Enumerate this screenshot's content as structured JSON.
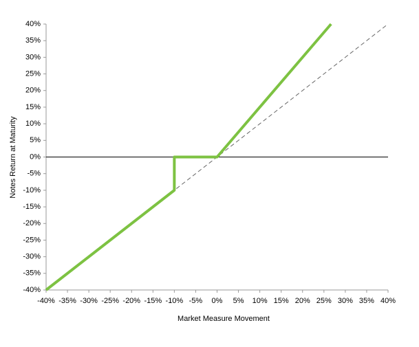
{
  "chart_data": {
    "type": "line",
    "xlabel": "Market Measure Movement",
    "ylabel": "Notes Return at Maturity",
    "series": [
      {
        "color": "#7dc242",
        "x": [
          -40,
          -10,
          -10,
          0,
          26.67
        ],
        "values": [
          -40,
          -10,
          0,
          0,
          40
        ]
      },
      {
        "color": "#666666",
        "dashed": true,
        "x": [
          -40,
          40
        ],
        "values": [
          -40,
          40
        ]
      }
    ],
    "xlim": [
      -40,
      40
    ],
    "ylim": [
      -40,
      40
    ],
    "xticks": [
      {
        "value": -40,
        "label": "-40%"
      },
      {
        "value": -35,
        "label": "-35%"
      },
      {
        "value": -30,
        "label": "-30%"
      },
      {
        "value": -25,
        "label": "-25%"
      },
      {
        "value": -20,
        "label": "-20%"
      },
      {
        "value": -15,
        "label": "-15%"
      },
      {
        "value": -10,
        "label": "-10%"
      },
      {
        "value": -5,
        "label": "-5%"
      },
      {
        "value": 0,
        "label": "0%"
      },
      {
        "value": 5,
        "label": "5%"
      },
      {
        "value": 10,
        "label": "10%"
      },
      {
        "value": 15,
        "label": "15%"
      },
      {
        "value": 20,
        "label": "20%"
      },
      {
        "value": 25,
        "label": "25%"
      },
      {
        "value": 30,
        "label": "30%"
      },
      {
        "value": 35,
        "label": "35%"
      },
      {
        "value": 40,
        "label": "40%"
      }
    ],
    "yticks": [
      {
        "value": -40,
        "label": "-40%"
      },
      {
        "value": -35,
        "label": "-35%"
      },
      {
        "value": -30,
        "label": "-30%"
      },
      {
        "value": -25,
        "label": "-25%"
      },
      {
        "value": -20,
        "label": "-20%"
      },
      {
        "value": -15,
        "label": "-15%"
      },
      {
        "value": -10,
        "label": "-10%"
      },
      {
        "value": -5,
        "label": "-5%"
      },
      {
        "value": 0,
        "label": "0%"
      },
      {
        "value": 5,
        "label": "5%"
      },
      {
        "value": 10,
        "label": "10%"
      },
      {
        "value": 15,
        "label": "15%"
      },
      {
        "value": 20,
        "label": "20%"
      },
      {
        "value": 25,
        "label": "25%"
      },
      {
        "value": 30,
        "label": "30%"
      },
      {
        "value": 35,
        "label": "35%"
      },
      {
        "value": 40,
        "label": "40%"
      }
    ],
    "grid": false
  }
}
